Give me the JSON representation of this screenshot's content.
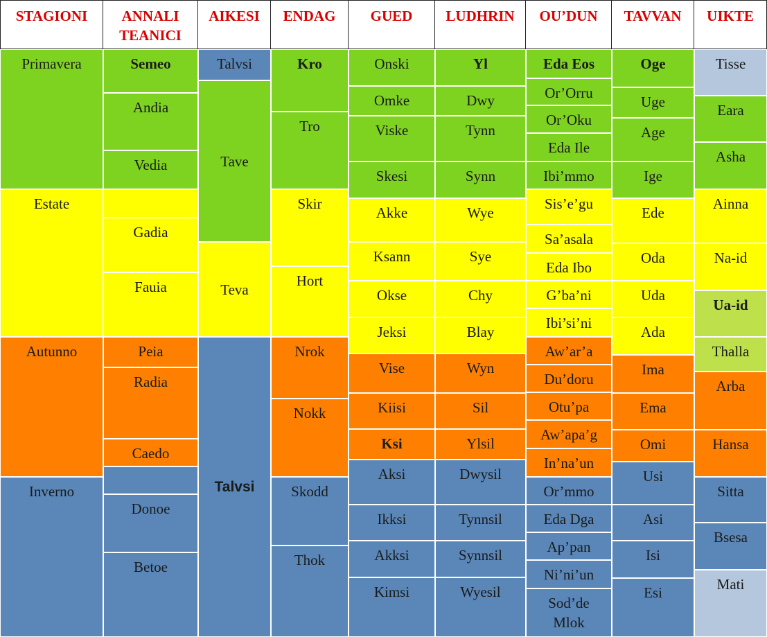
{
  "colors": {
    "spring": "#7ed321",
    "summer": "#ffff00",
    "autumn": "#ff8000",
    "winter": "#5a87b8",
    "light_blue": "#b4c7dc",
    "light_green": "#bde04b",
    "header_text": "#d90000"
  },
  "headers": [
    "STAGIONI",
    "ANNALI\nTEANICI",
    "AIKESI",
    "ENDAG",
    "GUED",
    "LUDHRIN",
    "OU’DUN",
    "TAVVAN",
    "UIKTE"
  ],
  "columns": [
    {
      "id": "stagioni",
      "cells": [
        {
          "text": "Primavera",
          "season": "spring"
        },
        {
          "text": "Estate",
          "season": "summer"
        },
        {
          "text": "Autunno",
          "season": "autumn"
        },
        {
          "text": "Inverno",
          "season": "winter"
        }
      ]
    },
    {
      "id": "annali",
      "cells": [
        {
          "text": "Semeo",
          "season": "spring",
          "bold": true
        },
        {
          "text": "Andia",
          "season": "spring"
        },
        {
          "text": "Vedia",
          "season": "spring"
        },
        {
          "text": "",
          "season": "summer"
        },
        {
          "text": "Gadia",
          "season": "summer"
        },
        {
          "text": "Fauia",
          "season": "summer"
        },
        {
          "text": "Peia",
          "season": "autumn"
        },
        {
          "text": "Radia",
          "season": "autumn"
        },
        {
          "text": "Caedo",
          "season": "autumn"
        },
        {
          "text": "",
          "season": "winter"
        },
        {
          "text": "Donoe",
          "season": "winter"
        },
        {
          "text": "Betoe",
          "season": "winter"
        }
      ]
    },
    {
      "id": "aikesi",
      "cells": [
        {
          "text": "Talvsi",
          "season": "winter"
        },
        {
          "text": "Tave",
          "season": "spring"
        },
        {
          "text": "Teva",
          "season": "summer"
        },
        {
          "text": "Talvsi",
          "season": "winter",
          "bold": true,
          "sans": true
        }
      ]
    },
    {
      "id": "endag",
      "cells": [
        {
          "text": "Kro",
          "season": "spring",
          "bold": true
        },
        {
          "text": "Tro",
          "season": "spring"
        },
        {
          "text": "Skir",
          "season": "summer"
        },
        {
          "text": "Hort",
          "season": "summer"
        },
        {
          "text": "Nrok",
          "season": "autumn"
        },
        {
          "text": "Nokk",
          "season": "autumn"
        },
        {
          "text": "Skodd",
          "season": "winter"
        },
        {
          "text": "Thok",
          "season": "winter"
        }
      ]
    },
    {
      "id": "gued",
      "cells": [
        {
          "text": "Onski",
          "season": "spring"
        },
        {
          "text": "Omke",
          "season": "spring"
        },
        {
          "text": "Viske",
          "season": "spring"
        },
        {
          "text": "Skesi",
          "season": "spring"
        },
        {
          "text": "Akke",
          "season": "summer"
        },
        {
          "text": "Ksann",
          "season": "summer"
        },
        {
          "text": "Okse",
          "season": "summer"
        },
        {
          "text": "Jeksi",
          "season": "summer"
        },
        {
          "text": "Vise",
          "season": "autumn"
        },
        {
          "text": "Kiisi",
          "season": "autumn"
        },
        {
          "text": "Ksi",
          "season": "autumn",
          "bold": true
        },
        {
          "text": "Aksi",
          "season": "winter"
        },
        {
          "text": "Ikksi",
          "season": "winter"
        },
        {
          "text": "Akksi",
          "season": "winter"
        },
        {
          "text": "Kimsi",
          "season": "winter"
        }
      ]
    },
    {
      "id": "ludhrin",
      "cells": [
        {
          "text": "Yl",
          "season": "spring",
          "bold": true
        },
        {
          "text": "Dwy",
          "season": "spring"
        },
        {
          "text": "Tynn",
          "season": "spring"
        },
        {
          "text": "Synn",
          "season": "spring"
        },
        {
          "text": "Wye",
          "season": "summer"
        },
        {
          "text": "Sye",
          "season": "summer"
        },
        {
          "text": "Chy",
          "season": "summer"
        },
        {
          "text": "Blay",
          "season": "summer"
        },
        {
          "text": "Wyn",
          "season": "autumn"
        },
        {
          "text": "Sil",
          "season": "autumn"
        },
        {
          "text": "Ylsil",
          "season": "autumn"
        },
        {
          "text": "Dwysil",
          "season": "winter"
        },
        {
          "text": "Tynnsil",
          "season": "winter"
        },
        {
          "text": "Synnsil",
          "season": "winter"
        },
        {
          "text": "Wyesil",
          "season": "winter"
        }
      ]
    },
    {
      "id": "oudun",
      "cells": [
        {
          "text": "Eda Eos",
          "season": "spring",
          "bold": true
        },
        {
          "text": "Or’Orru",
          "season": "spring"
        },
        {
          "text": "Or’Oku",
          "season": "spring"
        },
        {
          "text": "Eda Ile",
          "season": "spring"
        },
        {
          "text": "Ibi’mmo",
          "season": "spring"
        },
        {
          "text": "Sis’e’gu",
          "season": "summer"
        },
        {
          "text": "Sa’asala",
          "season": "summer"
        },
        {
          "text": "Eda Ibo",
          "season": "summer"
        },
        {
          "text": "G’ba’ni",
          "season": "summer"
        },
        {
          "text": "Ibi’si’ni",
          "season": "summer"
        },
        {
          "text": "Aw’ar’a",
          "season": "autumn"
        },
        {
          "text": "Du’doru",
          "season": "autumn"
        },
        {
          "text": "Otu’pa",
          "season": "autumn"
        },
        {
          "text": "Aw’apa’g",
          "season": "autumn"
        },
        {
          "text": "In’na’un",
          "season": "autumn"
        },
        {
          "text": "Or’mmo",
          "season": "winter"
        },
        {
          "text": "Eda Dga",
          "season": "winter"
        },
        {
          "text": "Ap’pan",
          "season": "winter"
        },
        {
          "text": "Ni’ni’un",
          "season": "winter"
        },
        {
          "text": "Sod’de\nMlok",
          "season": "winter"
        }
      ]
    },
    {
      "id": "tavvan",
      "cells": [
        {
          "text": "Oge",
          "season": "spring",
          "bold": true
        },
        {
          "text": "Uge",
          "season": "spring"
        },
        {
          "text": "Age",
          "season": "spring"
        },
        {
          "text": "Ige",
          "season": "spring"
        },
        {
          "text": "Ede",
          "season": "summer"
        },
        {
          "text": "Oda",
          "season": "summer"
        },
        {
          "text": "Uda",
          "season": "summer"
        },
        {
          "text": "Ada",
          "season": "summer"
        },
        {
          "text": "Ima",
          "season": "autumn"
        },
        {
          "text": "Ema",
          "season": "autumn"
        },
        {
          "text": "Omi",
          "season": "autumn"
        },
        {
          "text": "Usi",
          "season": "winter"
        },
        {
          "text": "Asi",
          "season": "winter"
        },
        {
          "text": "Isi",
          "season": "winter"
        },
        {
          "text": "Esi",
          "season": "winter"
        }
      ]
    },
    {
      "id": "uikte",
      "cells": [
        {
          "text": "Tisse",
          "season": "light_blue"
        },
        {
          "text": "Eara",
          "season": "spring"
        },
        {
          "text": "Asha",
          "season": "spring"
        },
        {
          "text": "Ainna",
          "season": "summer"
        },
        {
          "text": "Na-id",
          "season": "summer"
        },
        {
          "text": "Ua-id",
          "season": "light_green",
          "bold": true
        },
        {
          "text": "Thalla",
          "season": "light_green"
        },
        {
          "text": "Arba",
          "season": "autumn"
        },
        {
          "text": "Hansa",
          "season": "autumn"
        },
        {
          "text": "Sitta",
          "season": "winter"
        },
        {
          "text": "Bsesa",
          "season": "winter"
        },
        {
          "text": "Mati",
          "season": "light_blue"
        }
      ]
    }
  ]
}
